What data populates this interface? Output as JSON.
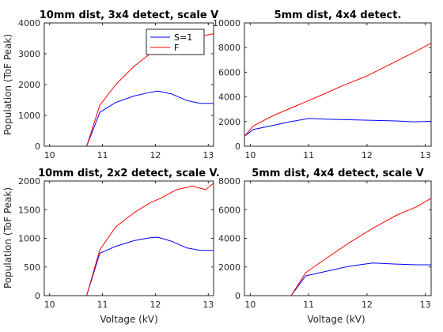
{
  "figure": {
    "ylabel": "Population (ToF Peak)",
    "xlabel": "Voltage (kV)"
  },
  "chart_data": [
    {
      "type": "line",
      "title": "10mm dist, 3x4 detect, scale V",
      "xlim": [
        9.9,
        13.1
      ],
      "ylim": [
        0,
        4000
      ],
      "xticks": [
        10,
        11,
        12,
        13
      ],
      "yticks": [
        0,
        1000,
        2000,
        3000,
        4000
      ],
      "legend": {
        "placement": "top-right",
        "entries": [
          "S=1",
          "F"
        ]
      },
      "series": [
        {
          "name": "S=1",
          "color": "#0000ff",
          "x": [
            9.9,
            10.7,
            10.95,
            11.25,
            11.6,
            11.9,
            12.05,
            12.3,
            12.6,
            12.85,
            13.1
          ],
          "y": [
            0,
            0,
            1100,
            1420,
            1630,
            1750,
            1790,
            1700,
            1480,
            1390,
            1390
          ]
        },
        {
          "name": "F",
          "color": "#ff0000",
          "x": [
            9.9,
            10.7,
            10.95,
            11.25,
            11.6,
            11.9,
            12.1,
            12.5,
            13.1
          ],
          "y": [
            0,
            0,
            1330,
            2000,
            2600,
            3000,
            3150,
            3450,
            3650
          ]
        }
      ]
    },
    {
      "type": "line",
      "title": "5mm dist, 4x4 detect.",
      "xlim": [
        9.9,
        13.1
      ],
      "ylim": [
        0,
        10000
      ],
      "xticks": [
        10,
        11,
        12,
        13
      ],
      "yticks": [
        0,
        2000,
        4000,
        6000,
        8000,
        10000
      ],
      "series": [
        {
          "name": "",
          "color": "#0000ff",
          "x": [
            9.9,
            10.05,
            10.4,
            10.7,
            11.0,
            11.3,
            11.7,
            12.1,
            12.5,
            12.8,
            13.1
          ],
          "y": [
            800,
            1350,
            1700,
            2000,
            2250,
            2200,
            2150,
            2100,
            2050,
            1980,
            2020
          ]
        },
        {
          "name": "",
          "color": "#ff0000",
          "x": [
            9.9,
            10.05,
            10.4,
            10.8,
            11.2,
            11.6,
            12.0,
            12.4,
            12.8,
            13.1
          ],
          "y": [
            800,
            1650,
            2500,
            3300,
            4100,
            4950,
            5700,
            6650,
            7600,
            8350
          ]
        }
      ]
    },
    {
      "type": "line",
      "title": "10mm dist, 2x2 detect, scale V.",
      "xlim": [
        9.9,
        13.1
      ],
      "ylim": [
        0,
        2000
      ],
      "xticks": [
        10,
        11,
        12,
        13
      ],
      "yticks": [
        0,
        500,
        1000,
        1500,
        2000
      ],
      "series": [
        {
          "name": "",
          "color": "#0000ff",
          "x": [
            9.9,
            10.7,
            10.95,
            11.25,
            11.6,
            11.9,
            12.05,
            12.3,
            12.6,
            12.85,
            13.1
          ],
          "y": [
            0,
            0,
            740,
            860,
            960,
            1010,
            1020,
            950,
            830,
            790,
            790
          ]
        },
        {
          "name": "",
          "color": "#ff0000",
          "x": [
            9.9,
            10.7,
            10.95,
            11.25,
            11.6,
            11.9,
            12.1,
            12.4,
            12.7,
            12.95,
            13.1
          ],
          "y": [
            0,
            0,
            800,
            1200,
            1450,
            1620,
            1700,
            1850,
            1910,
            1850,
            1960
          ]
        }
      ]
    },
    {
      "type": "line",
      "title": "5mm dist, 4x4 detect, scale V",
      "xlim": [
        9.9,
        13.1
      ],
      "ylim": [
        0,
        8000
      ],
      "xticks": [
        10,
        11,
        12,
        13
      ],
      "yticks": [
        0,
        2000,
        4000,
        6000,
        8000
      ],
      "series": [
        {
          "name": "",
          "color": "#0000ff",
          "x": [
            9.9,
            10.7,
            10.95,
            11.3,
            11.7,
            12.1,
            12.5,
            12.85,
            13.1
          ],
          "y": [
            0,
            0,
            1380,
            1700,
            2050,
            2280,
            2200,
            2150,
            2150
          ]
        },
        {
          "name": "",
          "color": "#ff0000",
          "x": [
            9.9,
            10.7,
            10.95,
            11.3,
            11.7,
            12.1,
            12.5,
            12.85,
            13.1
          ],
          "y": [
            0,
            0,
            1600,
            2600,
            3700,
            4700,
            5600,
            6200,
            6800
          ]
        }
      ]
    }
  ]
}
